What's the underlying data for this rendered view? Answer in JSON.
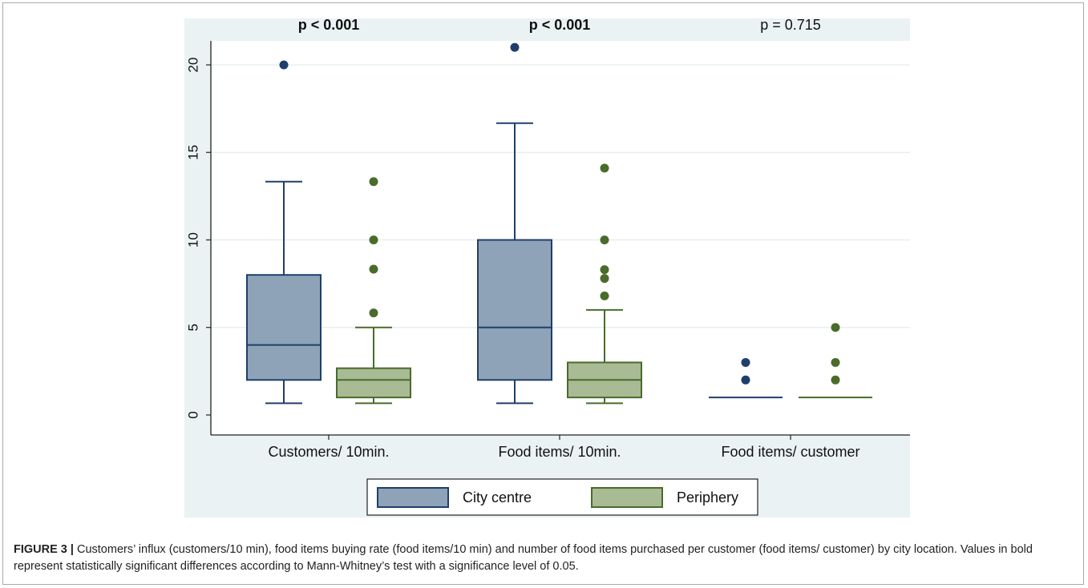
{
  "chart_data": {
    "type": "box",
    "categories": [
      "Customers/ 10min.",
      "Food items/ 10min.",
      "Food items/ customer"
    ],
    "p_values": [
      {
        "text": "p < 0.001",
        "bold": true
      },
      {
        "text": "p < 0.001",
        "bold": true
      },
      {
        "text": "p = 0.715",
        "bold": false
      }
    ],
    "y_ticks": [
      0,
      5,
      10,
      15,
      20
    ],
    "ylim": [
      -1.2,
      21.3
    ],
    "grid": true,
    "legend_placement": "bottom",
    "series": [
      {
        "name": "City centre",
        "color": "#1f3f6b",
        "fill": "#8fa3b8",
        "boxes": [
          {
            "min": 0.67,
            "q1": 2,
            "median": 4,
            "q3": 8,
            "max": 13.33,
            "outliers": [
              20
            ]
          },
          {
            "min": 0.67,
            "q1": 2,
            "median": 5,
            "q3": 10,
            "max": 16.67,
            "outliers": [
              21
            ]
          },
          {
            "min": 1,
            "q1": 1,
            "median": 1,
            "q3": 1,
            "max": 1,
            "outliers": [
              2,
              3
            ]
          }
        ]
      },
      {
        "name": "Periphery",
        "color": "#4a6b2a",
        "fill": "#a8bb95",
        "boxes": [
          {
            "min": 0.67,
            "q1": 1,
            "median": 2,
            "q3": 2.67,
            "max": 5,
            "outliers": [
              5.83,
              8.33,
              10,
              13.33
            ]
          },
          {
            "min": 0.67,
            "q1": 1,
            "median": 2,
            "q3": 3,
            "max": 6,
            "outliers": [
              6.8,
              7.8,
              8.3,
              10,
              14.1
            ]
          },
          {
            "min": 1,
            "q1": 1,
            "median": 1,
            "q3": 1,
            "max": 1,
            "outliers": [
              2,
              3,
              5
            ]
          }
        ]
      }
    ]
  },
  "caption": {
    "label": "FIGURE 3 |",
    "text": " Customers’ influx (customers/10 min), food items buying rate (food items/10 min) and number of food items purchased per customer (food items/ customer) by city location. Values in bold represent statistically significant differences according to Mann-Whitney’s test with a significance level of 0.05."
  }
}
